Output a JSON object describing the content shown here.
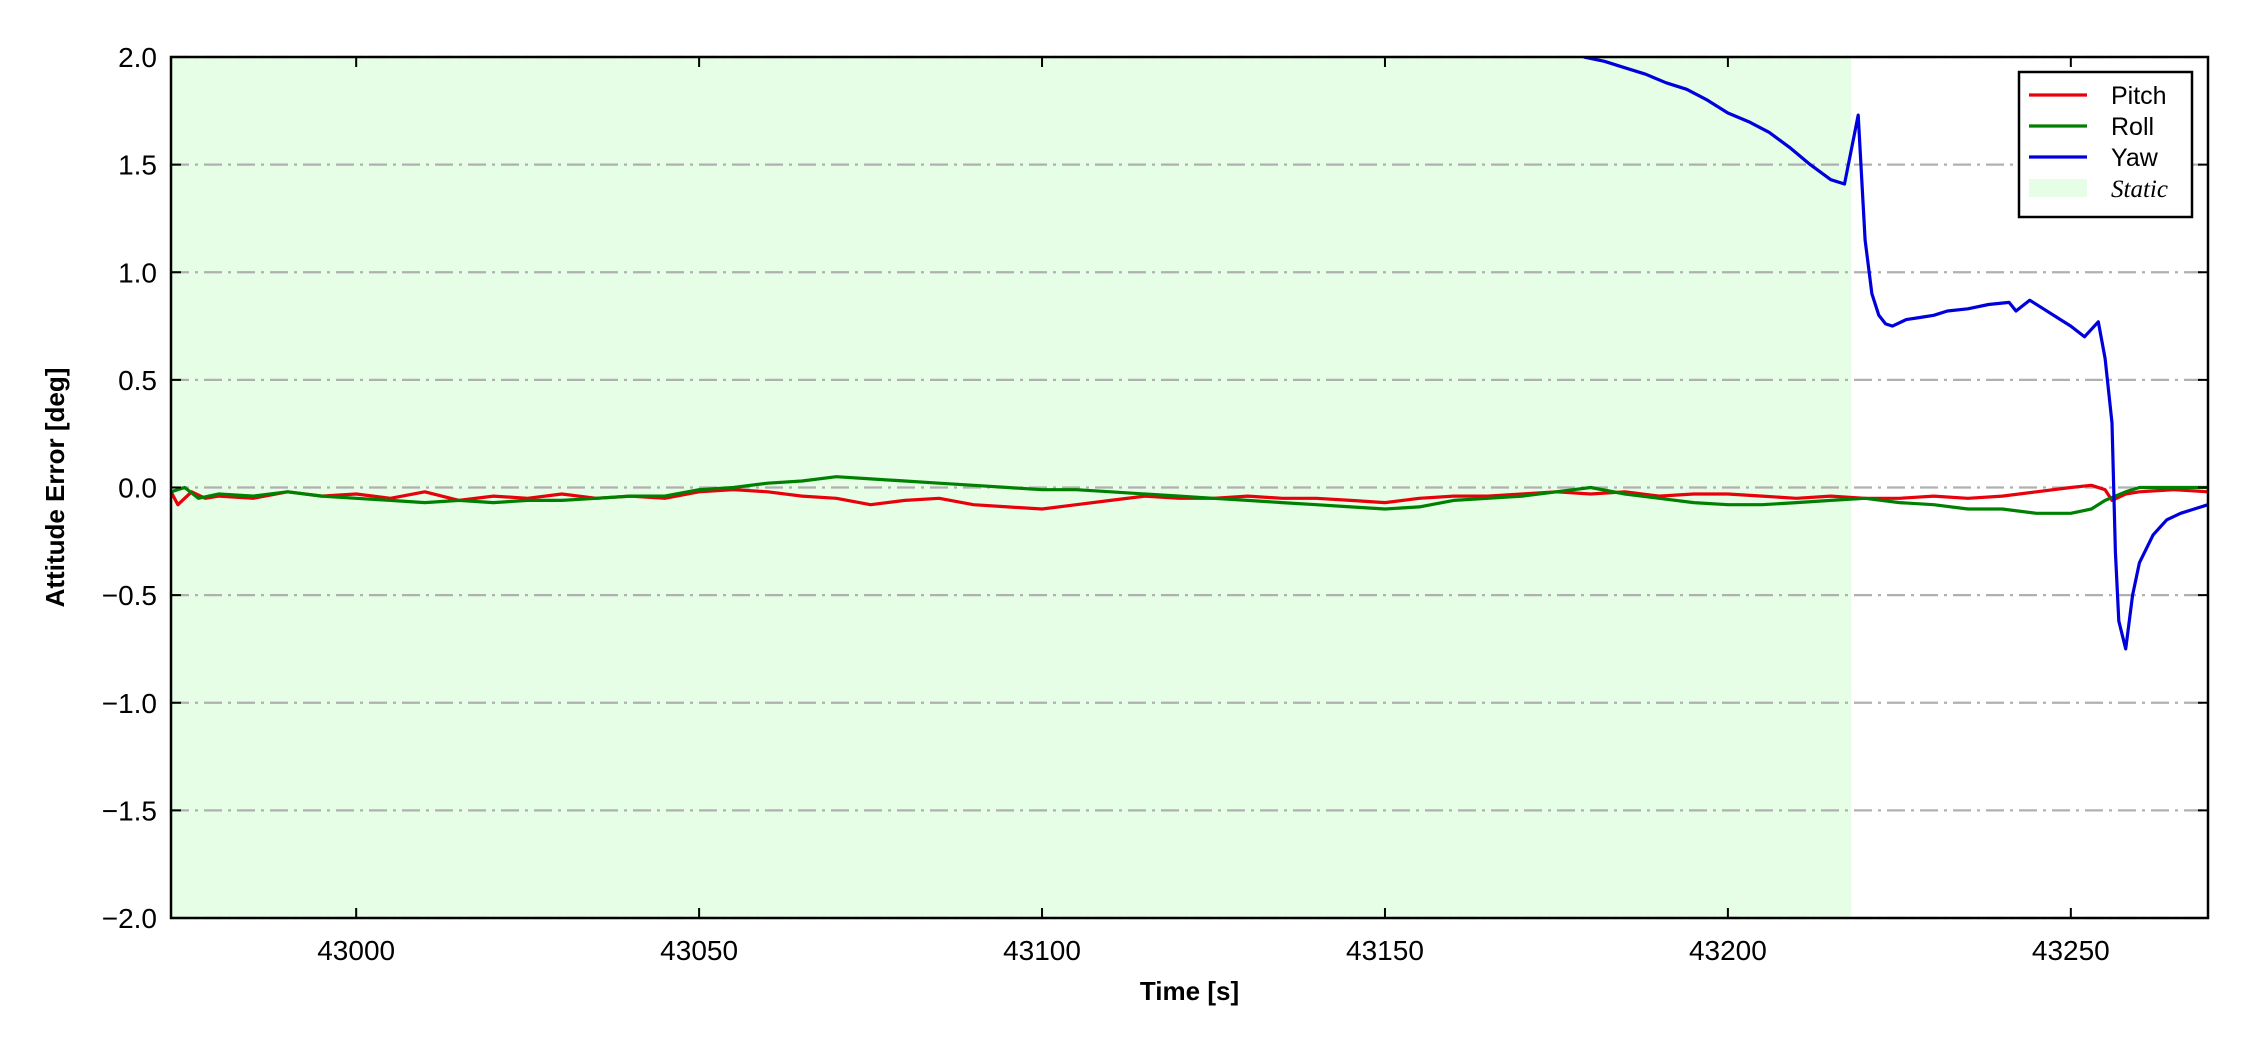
{
  "chart_data": {
    "type": "line",
    "xlabel": "Time [s]",
    "ylabel": "Attitude Error [deg]",
    "xlim": [
      42973,
      43270
    ],
    "ylim": [
      -2.0,
      2.0
    ],
    "xticks": [
      43000,
      43050,
      43100,
      43150,
      43200,
      43250
    ],
    "xtick_labels": [
      "43000",
      "43050",
      "43100",
      "43150",
      "43200",
      "43250"
    ],
    "yticks": [
      -2.0,
      -1.5,
      -1.0,
      -0.5,
      0.0,
      0.5,
      1.0,
      1.5,
      2.0
    ],
    "ytick_labels": [
      "−2.0",
      "−1.5",
      "−1.0",
      "−0.5",
      "0.0",
      "0.5",
      "1.0",
      "1.5",
      "2.0"
    ],
    "grid": "horizontal dash-dot",
    "legend_position": "top-right",
    "static_region": {
      "label": "Static",
      "x_start": 42973,
      "x_end": 43218,
      "color": "#e6fde6"
    },
    "series": [
      {
        "name": "Pitch",
        "color": "#e8000b",
        "x": [
          42973,
          42974,
          42976,
          42978,
          42980,
          42985,
          42990,
          42995,
          43000,
          43005,
          43010,
          43015,
          43020,
          43025,
          43030,
          43035,
          43040,
          43045,
          43050,
          43055,
          43060,
          43065,
          43070,
          43075,
          43080,
          43085,
          43090,
          43095,
          43100,
          43105,
          43110,
          43115,
          43120,
          43125,
          43130,
          43135,
          43140,
          43145,
          43150,
          43155,
          43160,
          43165,
          43170,
          43175,
          43180,
          43185,
          43190,
          43195,
          43200,
          43205,
          43210,
          43215,
          43220,
          43225,
          43230,
          43235,
          43240,
          43245,
          43250,
          43253,
          43255,
          43256,
          43258,
          43260,
          43265,
          43270
        ],
        "y": [
          -0.02,
          -0.08,
          -0.02,
          -0.05,
          -0.04,
          -0.05,
          -0.02,
          -0.04,
          -0.03,
          -0.05,
          -0.02,
          -0.06,
          -0.04,
          -0.05,
          -0.03,
          -0.05,
          -0.04,
          -0.05,
          -0.02,
          -0.01,
          -0.02,
          -0.04,
          -0.05,
          -0.08,
          -0.06,
          -0.05,
          -0.08,
          -0.09,
          -0.1,
          -0.08,
          -0.06,
          -0.04,
          -0.05,
          -0.05,
          -0.04,
          -0.05,
          -0.05,
          -0.06,
          -0.07,
          -0.05,
          -0.04,
          -0.04,
          -0.03,
          -0.02,
          -0.03,
          -0.02,
          -0.04,
          -0.03,
          -0.03,
          -0.04,
          -0.05,
          -0.04,
          -0.05,
          -0.05,
          -0.04,
          -0.05,
          -0.04,
          -0.02,
          0.0,
          0.01,
          -0.01,
          -0.06,
          -0.03,
          -0.02,
          -0.01,
          -0.02
        ]
      },
      {
        "name": "Roll",
        "color": "#008000",
        "x": [
          42973,
          42975,
          42977,
          42980,
          42985,
          42990,
          42995,
          43000,
          43005,
          43010,
          43015,
          43020,
          43025,
          43030,
          43035,
          43040,
          43045,
          43050,
          43055,
          43060,
          43065,
          43070,
          43075,
          43080,
          43085,
          43090,
          43095,
          43100,
          43105,
          43110,
          43115,
          43120,
          43125,
          43130,
          43135,
          43140,
          43145,
          43150,
          43155,
          43160,
          43165,
          43170,
          43175,
          43180,
          43185,
          43190,
          43195,
          43200,
          43205,
          43210,
          43215,
          43220,
          43225,
          43230,
          43235,
          43240,
          43245,
          43250,
          43253,
          43255,
          43258,
          43260,
          43265,
          43270
        ],
        "y": [
          -0.02,
          0.0,
          -0.05,
          -0.03,
          -0.04,
          -0.02,
          -0.04,
          -0.05,
          -0.06,
          -0.07,
          -0.06,
          -0.07,
          -0.06,
          -0.06,
          -0.05,
          -0.04,
          -0.04,
          -0.01,
          0.0,
          0.02,
          0.03,
          0.05,
          0.04,
          0.03,
          0.02,
          0.01,
          0.0,
          -0.01,
          -0.01,
          -0.02,
          -0.03,
          -0.04,
          -0.05,
          -0.06,
          -0.07,
          -0.08,
          -0.09,
          -0.1,
          -0.09,
          -0.06,
          -0.05,
          -0.04,
          -0.02,
          0.0,
          -0.03,
          -0.05,
          -0.07,
          -0.08,
          -0.08,
          -0.07,
          -0.06,
          -0.05,
          -0.07,
          -0.08,
          -0.1,
          -0.1,
          -0.12,
          -0.12,
          -0.1,
          -0.06,
          -0.02,
          0.0,
          0.0,
          0.0
        ]
      },
      {
        "name": "Yaw",
        "color": "#0000dd",
        "x": [
          43179,
          43182,
          43185,
          43188,
          43191,
          43194,
          43197,
          43200,
          43203,
          43206,
          43209,
          43212,
          43215,
          43217,
          43219,
          43220,
          43221,
          43222,
          43223,
          43224,
          43226,
          43228,
          43230,
          43232,
          43235,
          43238,
          43241,
          43242,
          43244,
          43246,
          43248,
          43250,
          43252,
          43254,
          43255,
          43256,
          43256.5,
          43257,
          43258,
          43259,
          43260,
          43262,
          43264,
          43266,
          43268,
          43270
        ],
        "y": [
          2.0,
          1.98,
          1.95,
          1.92,
          1.88,
          1.85,
          1.8,
          1.74,
          1.7,
          1.65,
          1.58,
          1.5,
          1.43,
          1.41,
          1.73,
          1.15,
          0.9,
          0.8,
          0.76,
          0.75,
          0.78,
          0.79,
          0.8,
          0.82,
          0.83,
          0.85,
          0.86,
          0.82,
          0.87,
          0.83,
          0.79,
          0.75,
          0.7,
          0.77,
          0.6,
          0.3,
          -0.3,
          -0.62,
          -0.75,
          -0.5,
          -0.35,
          -0.22,
          -0.15,
          -0.12,
          -0.1,
          -0.08
        ]
      }
    ]
  }
}
